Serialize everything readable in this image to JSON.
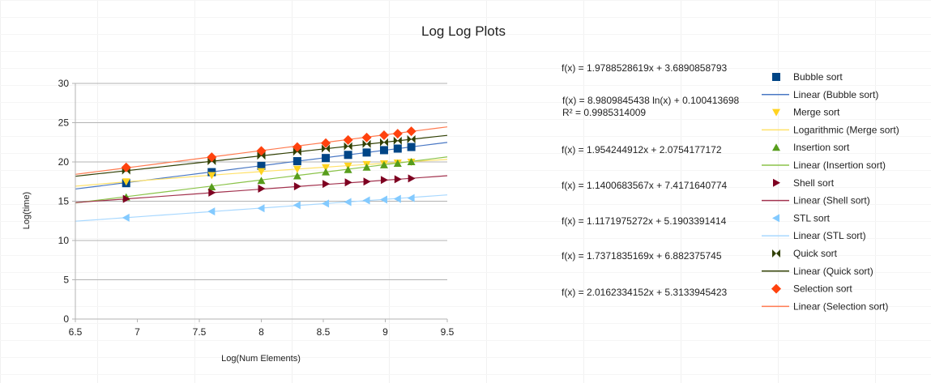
{
  "chart_data": {
    "type": "scatter",
    "title": "Log Log Plots",
    "xlabel": "Log(Num Elements)",
    "ylabel": "Log(time)",
    "xlim": [
      6.5,
      9.5
    ],
    "ylim": [
      0,
      30
    ],
    "x_ticks": [
      "6.5",
      "7",
      "7.5",
      "8",
      "8.5",
      "9",
      "9.5"
    ],
    "y_ticks": [
      "0",
      "5",
      "10",
      "15",
      "20",
      "25",
      "30"
    ],
    "grid": "horizontal",
    "legend_position": "right",
    "series": [
      {
        "name": "Bubble sort",
        "marker": "square",
        "color": "#004586",
        "trend_name": "Linear (Bubble sort)",
        "trend_type": "linear",
        "trend_color": "#4a78c4",
        "equation": "f(x) = 1.9788528619x + 3.6890858793",
        "slope": 1.9788528619,
        "intercept": 3.6890858793,
        "x": [
          6.91,
          7.6,
          8.0,
          8.29,
          8.52,
          8.7,
          8.85,
          8.99,
          9.1,
          9.21
        ],
        "y": [
          17.3,
          18.7,
          19.5,
          20.1,
          20.5,
          20.9,
          21.2,
          21.5,
          21.7,
          21.9
        ]
      },
      {
        "name": "Merge sort",
        "marker": "triangle-down",
        "color": "#ffd320",
        "trend_name": "Logarithmic (Merge sort)",
        "trend_type": "log",
        "trend_color": "#ffe169",
        "equation": "f(x) = 8.9809845438 ln(x) + 0.100413698",
        "r2": "R² = 0.9985314009",
        "a": 8.9809845438,
        "b": 0.100413698,
        "x": [
          6.91,
          7.6,
          8.0,
          8.29,
          8.52,
          8.7,
          8.85,
          8.99,
          9.1,
          9.21
        ],
        "y": [
          17.5,
          18.3,
          18.8,
          19.1,
          19.3,
          19.5,
          19.7,
          19.8,
          19.9,
          20.0
        ]
      },
      {
        "name": "Insertion sort",
        "marker": "triangle-up",
        "color": "#579d1c",
        "trend_name": "Linear (Insertion sort)",
        "trend_type": "linear",
        "trend_color": "#8bc34a",
        "equation": "f(x) = 1.954244912x + 2.0754177172",
        "slope": 1.954244912,
        "intercept": 2.0754177172,
        "x": [
          6.91,
          7.6,
          8.0,
          8.29,
          8.52,
          8.7,
          8.85,
          8.99,
          9.1,
          9.21
        ],
        "y": [
          15.5,
          16.8,
          17.6,
          18.2,
          18.7,
          19.0,
          19.3,
          19.6,
          19.8,
          20.0
        ]
      },
      {
        "name": "Shell sort",
        "marker": "triangle-right",
        "color": "#7e0021",
        "trend_name": "Linear (Shell sort)",
        "trend_type": "linear",
        "trend_color": "#a3334f",
        "equation": "f(x) = 1.1400683567x + 7.4171640774",
        "slope": 1.1400683567,
        "intercept": 7.4171640774,
        "x": [
          6.91,
          7.6,
          8.0,
          8.29,
          8.52,
          8.7,
          8.85,
          8.99,
          9.1,
          9.21
        ],
        "y": [
          15.3,
          16.1,
          16.6,
          16.9,
          17.2,
          17.4,
          17.5,
          17.7,
          17.8,
          17.9
        ]
      },
      {
        "name": "STL sort",
        "marker": "triangle-left",
        "color": "#83caff",
        "trend_name": "Linear (STL sort)",
        "trend_type": "linear",
        "trend_color": "#a8d8ff",
        "equation": "f(x) = 1.1171975272x + 5.1903391414",
        "slope": 1.1171975272,
        "intercept": 5.1903391414,
        "x": [
          6.91,
          7.6,
          8.0,
          8.29,
          8.52,
          8.7,
          8.85,
          8.99,
          9.1,
          9.21
        ],
        "y": [
          12.9,
          13.7,
          14.1,
          14.5,
          14.7,
          14.9,
          15.1,
          15.2,
          15.3,
          15.4
        ]
      },
      {
        "name": "Quick sort",
        "marker": "bowtie",
        "color": "#314004",
        "trend_name": "Linear (Quick sort)",
        "trend_type": "linear",
        "trend_color": "#314004",
        "equation": "f(x) = 1.7371835169x + 6.882375745",
        "slope": 1.7371835169,
        "intercept": 6.882375745,
        "x": [
          6.91,
          7.6,
          8.0,
          8.29,
          8.52,
          8.7,
          8.85,
          8.99,
          9.1,
          9.21
        ],
        "y": [
          18.9,
          20.1,
          20.8,
          21.3,
          21.7,
          22.0,
          22.3,
          22.5,
          22.7,
          22.9
        ]
      },
      {
        "name": "Selection sort",
        "marker": "diamond",
        "color": "#ff420e",
        "trend_name": "Linear (Selection sort)",
        "trend_type": "linear",
        "trend_color": "#ff7a50",
        "equation": "f(x) = 2.0162334152x + 5.3133945423",
        "slope": 2.0162334152,
        "intercept": 5.3133945423,
        "x": [
          6.91,
          7.6,
          8.0,
          8.29,
          8.52,
          8.7,
          8.85,
          8.99,
          9.1,
          9.21
        ],
        "y": [
          19.3,
          20.6,
          21.4,
          21.9,
          22.4,
          22.8,
          23.1,
          23.4,
          23.6,
          23.9
        ]
      }
    ]
  }
}
